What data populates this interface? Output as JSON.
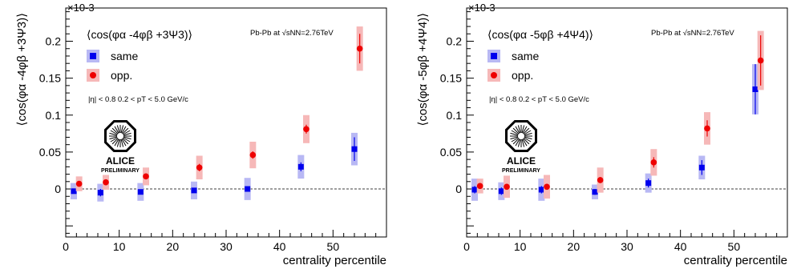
{
  "chart_data": [
    {
      "type": "scatter",
      "title": "⟨cos(φα -4φβ +3Ψ3)⟩",
      "legend_title": "⟨cos(φα -4φβ +3Ψ3)⟩",
      "ylabel": "⟨cos(φα -4φβ +3Ψ3)⟩",
      "xlabel": "centrality percentile",
      "multiplier": "×10-3",
      "collision_label": "Pb-Pb at √sNN=2.76TeV",
      "cuts_label": "|η| < 0.8   0.2 < pT < 5.0 GeV/c",
      "logo": {
        "name": "ALICE",
        "tag": "PRELIMINARY"
      },
      "xlim": [
        0,
        60
      ],
      "ylim": [
        -0.065,
        0.245
      ],
      "xticks": [
        0,
        10,
        20,
        30,
        40,
        50
      ],
      "xtick_labels": [
        "0",
        "10",
        "20",
        "30",
        "40",
        "50"
      ],
      "yticks": [
        0,
        0.05,
        0.1,
        0.15,
        0.2
      ],
      "ytick_labels": [
        "0",
        "0.05",
        "0.1",
        "0.15",
        "0.2"
      ],
      "grid": false,
      "zero_line": true,
      "legend_position": "top-left",
      "series": [
        {
          "name": "same",
          "color": "#0000ee",
          "syst_color": "#b8b8f4",
          "marker": "square",
          "x": [
            1.5,
            6.5,
            14,
            24,
            34,
            44,
            54
          ],
          "y": [
            -0.003,
            -0.005,
            -0.004,
            -0.002,
            0.0,
            0.03,
            0.054
          ],
          "stat_err": [
            0.002,
            0.005,
            0.003,
            0.002,
            0.003,
            0.006,
            0.016
          ],
          "syst_err": [
            0.011,
            0.012,
            0.012,
            0.012,
            0.015,
            0.016,
            0.022
          ]
        },
        {
          "name": "opp.",
          "color": "#ee0000",
          "syst_color": "#f6b8b8",
          "marker": "circle",
          "x": [
            2.5,
            7.5,
            15,
            25,
            35,
            45,
            55
          ],
          "y": [
            0.007,
            0.009,
            0.017,
            0.029,
            0.046,
            0.081,
            0.19
          ],
          "stat_err": [
            0.002,
            0.004,
            0.004,
            0.005,
            0.005,
            0.006,
            0.02
          ],
          "syst_err": [
            0.01,
            0.01,
            0.012,
            0.016,
            0.018,
            0.019,
            0.03
          ]
        }
      ]
    },
    {
      "type": "scatter",
      "title": "⟨cos(φα -5φβ +4Ψ4)⟩",
      "legend_title": "⟨cos(φα -5φβ +4Ψ4)⟩",
      "ylabel": "⟨cos(φα -5φβ +4Ψ4)⟩",
      "xlabel": "centrality percentile",
      "multiplier": "×10-3",
      "collision_label": "Pb-Pb at √sNN=2.76TeV",
      "cuts_label": "|η| < 0.8   0.2 < pT < 5.0 GeV/c",
      "logo": {
        "name": "ALICE",
        "tag": "PRELIMINARY"
      },
      "xlim": [
        0,
        60
      ],
      "ylim": [
        -0.065,
        0.245
      ],
      "xticks": [
        0,
        10,
        20,
        30,
        40,
        50
      ],
      "xtick_labels": [
        "0",
        "10",
        "20",
        "30",
        "40",
        "50"
      ],
      "yticks": [
        0,
        0.05,
        0.1,
        0.15,
        0.2
      ],
      "ytick_labels": [
        "0",
        "0.05",
        "0.1",
        "0.15",
        "0.2"
      ],
      "grid": false,
      "zero_line": true,
      "legend_position": "top-left",
      "series": [
        {
          "name": "same",
          "color": "#0000ee",
          "syst_color": "#b8b8f4",
          "marker": "square",
          "x": [
            1.5,
            6.5,
            14,
            24,
            34,
            44,
            54
          ],
          "y": [
            -0.001,
            -0.003,
            -0.001,
            -0.004,
            0.008,
            0.029,
            0.135
          ],
          "stat_err": [
            0.005,
            0.005,
            0.005,
            0.004,
            0.006,
            0.01,
            0.034
          ],
          "syst_err": [
            0.015,
            0.012,
            0.015,
            0.01,
            0.013,
            0.016,
            0.034
          ]
        },
        {
          "name": "opp.",
          "color": "#ee0000",
          "syst_color": "#f6b8b8",
          "marker": "circle",
          "x": [
            2.5,
            7.5,
            15,
            25,
            35,
            45,
            55
          ],
          "y": [
            0.004,
            0.003,
            0.003,
            0.012,
            0.036,
            0.082,
            0.174
          ],
          "stat_err": [
            0.003,
            0.004,
            0.004,
            0.004,
            0.007,
            0.011,
            0.034
          ],
          "syst_err": [
            0.01,
            0.015,
            0.016,
            0.017,
            0.018,
            0.022,
            0.04
          ]
        }
      ]
    }
  ]
}
